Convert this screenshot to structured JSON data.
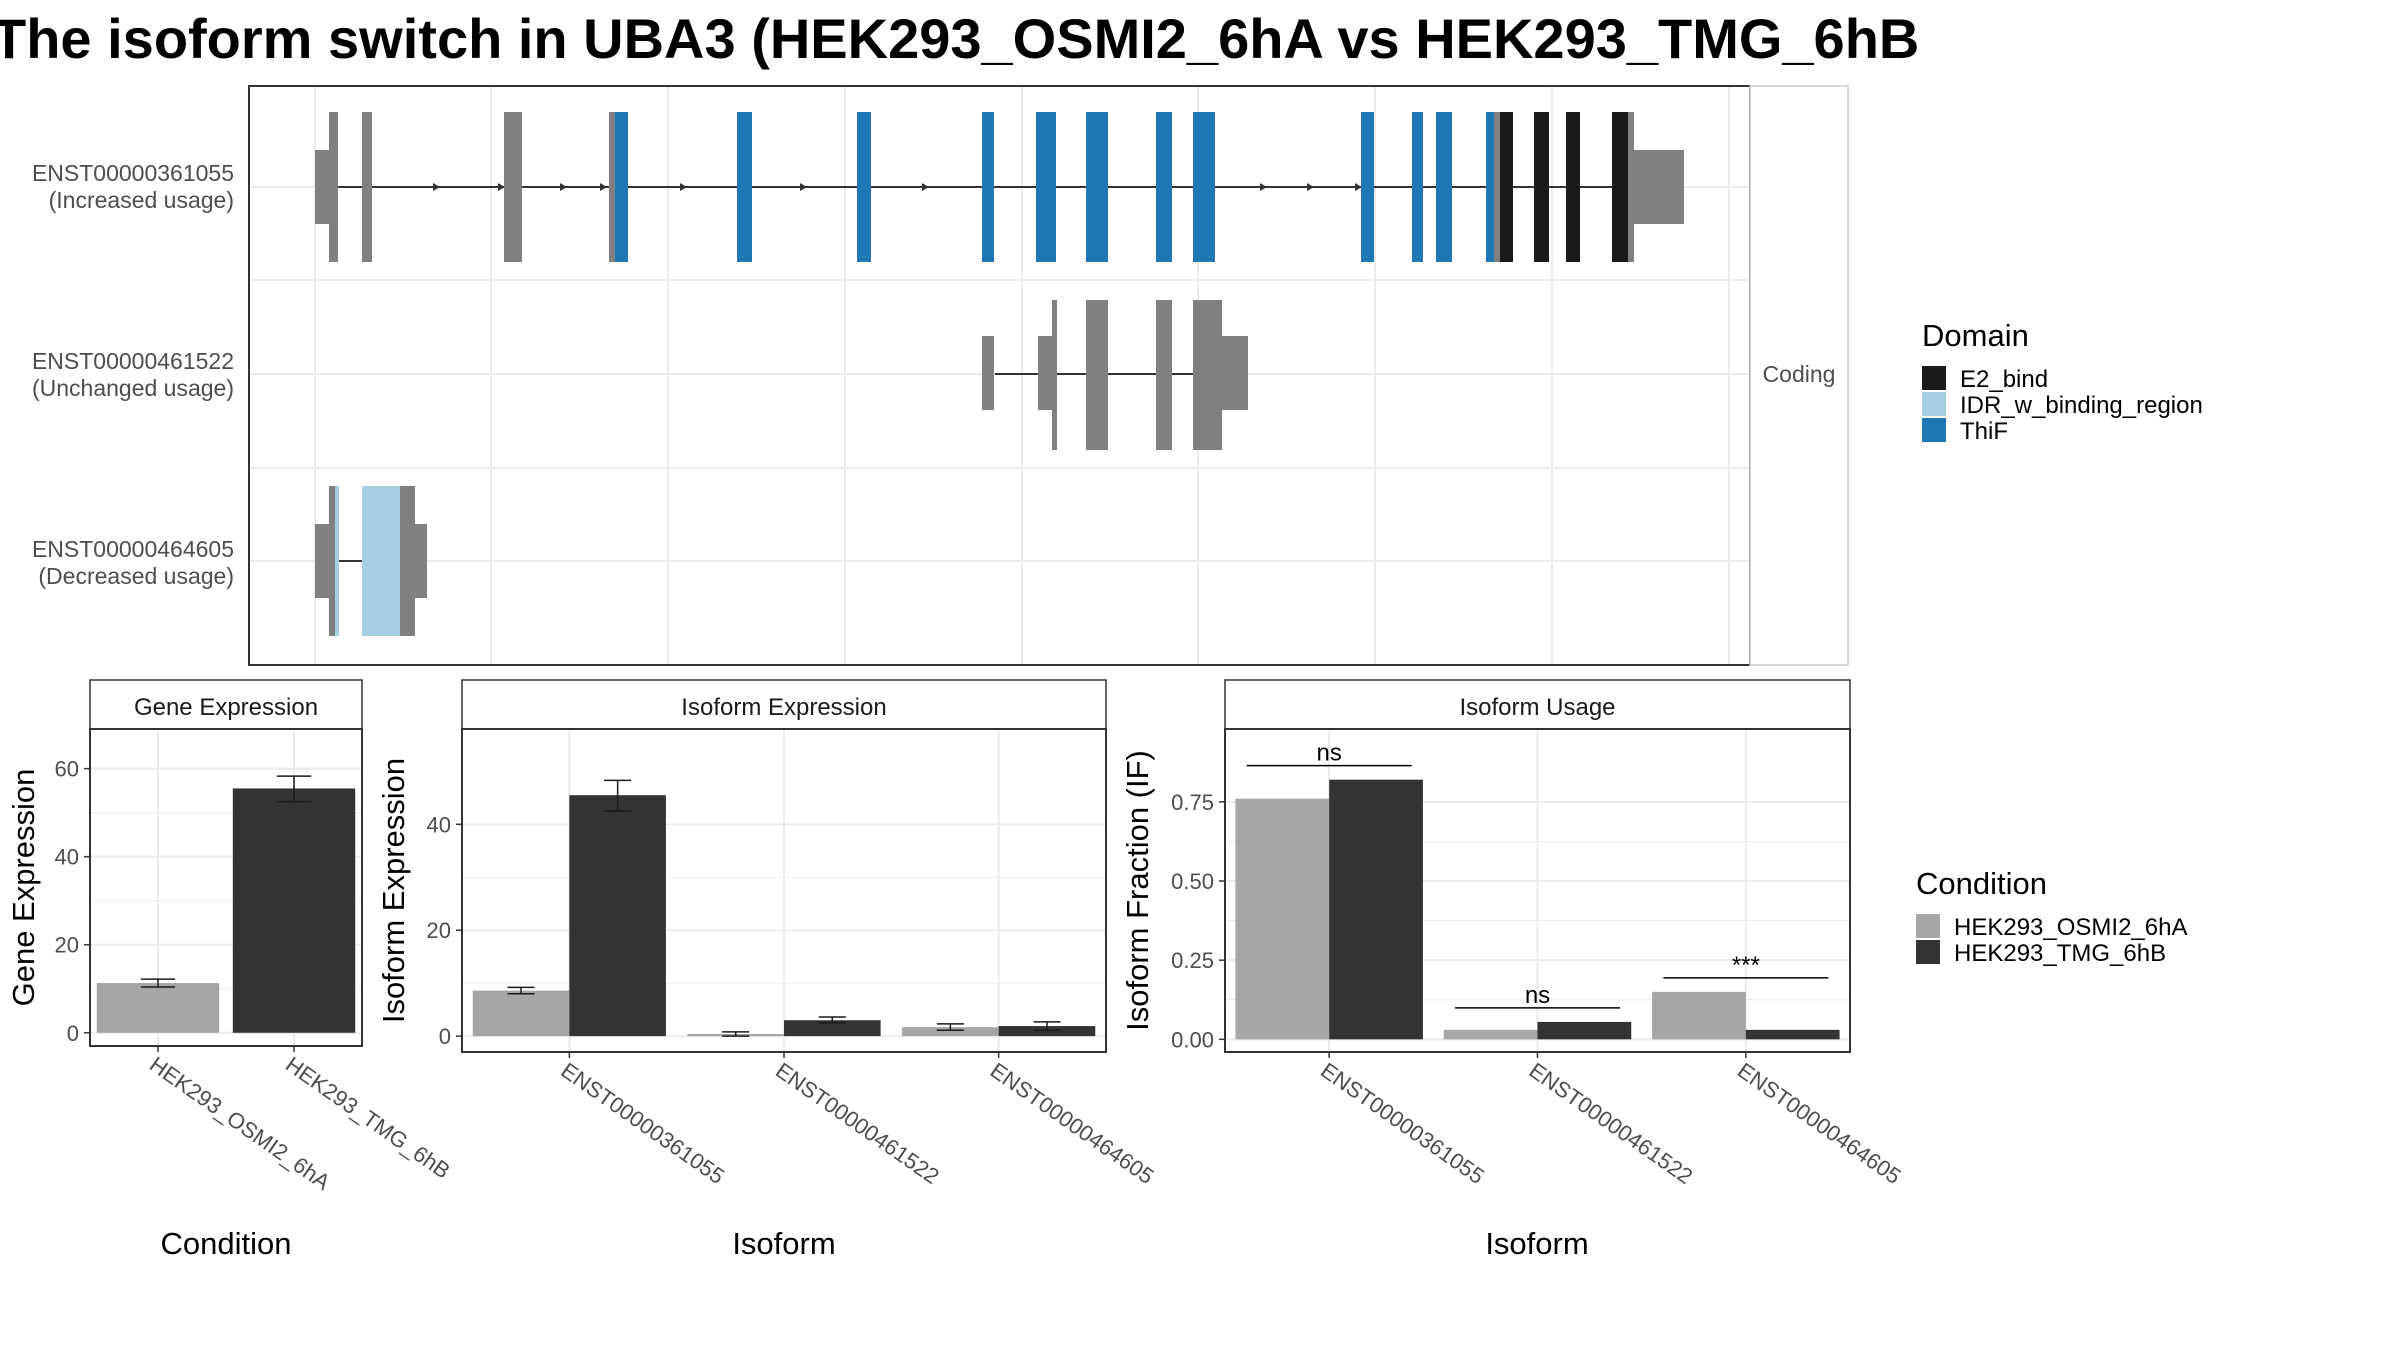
{
  "title": "The isoform switch in UBA3 (HEK293_OSMI2_6hA vs HEK293_TMG_6hB",
  "structure": {
    "facet_label": "Coding",
    "transcripts": [
      {
        "id": "ENST00000361055",
        "usage": "(Increased usage)"
      },
      {
        "id": "ENST00000461522",
        "usage": "(Unchanged usage)"
      },
      {
        "id": "ENST00000464605",
        "usage": "(Decreased usage)"
      }
    ]
  },
  "legend_domain": {
    "title": "Domain",
    "items": [
      {
        "label": "E2_bind",
        "color": "#1a1a1a"
      },
      {
        "label": "IDR_w_binding_region",
        "color": "#a6cee3"
      },
      {
        "label": "ThiF",
        "color": "#1f78b4"
      }
    ]
  },
  "legend_condition": {
    "title": "Condition",
    "items": [
      {
        "label": "HEK293_OSMI2_6hA",
        "color": "#a6a6a6"
      },
      {
        "label": "HEK293_TMG_6hB",
        "color": "#333333"
      }
    ]
  },
  "colors": {
    "utr": "#808080",
    "intron": "#333333",
    "grid": "#ebebeb",
    "panel_border": "#333333"
  },
  "chart_data": [
    {
      "type": "bar",
      "title": "Gene Expression",
      "xlabel": "Condition",
      "ylabel": "Gene Expression",
      "categories": [
        "HEK293_OSMI2_6hA",
        "HEK293_TMG_6hB"
      ],
      "values": [
        11.3,
        55.5
      ],
      "errors": [
        [
          10.4,
          12.2
        ],
        [
          52.5,
          58.3
        ]
      ],
      "ylim": [
        -3,
        69
      ],
      "yticks": [
        0,
        20,
        40,
        60
      ]
    },
    {
      "type": "bar",
      "title": "Isoform Expression",
      "xlabel": "Isoform",
      "ylabel": "Isoform Expression",
      "categories": [
        "ENST00000361055",
        "ENST00000461522",
        "ENST00000464605"
      ],
      "series": [
        {
          "name": "HEK293_OSMI2_6hA",
          "values": [
            8.6,
            0.4,
            1.7
          ],
          "errors": [
            [
              8.0,
              9.2
            ],
            [
              0.0,
              0.8
            ],
            [
              1.1,
              2.3
            ]
          ]
        },
        {
          "name": "HEK293_TMG_6hB",
          "values": [
            45.5,
            3.0,
            1.9
          ],
          "errors": [
            [
              42.5,
              48.3
            ],
            [
              2.5,
              3.6
            ],
            [
              1.1,
              2.7
            ]
          ]
        }
      ],
      "ylim": [
        -3,
        58
      ],
      "yticks": [
        0,
        20,
        40
      ]
    },
    {
      "type": "bar",
      "title": "Isoform Usage",
      "xlabel": "Isoform",
      "ylabel": "Isoform Fraction (IF)",
      "categories": [
        "ENST00000361055",
        "ENST00000461522",
        "ENST00000464605"
      ],
      "series": [
        {
          "name": "HEK293_OSMI2_6hA",
          "values": [
            0.76,
            0.03,
            0.15
          ]
        },
        {
          "name": "HEK293_TMG_6hB",
          "values": [
            0.82,
            0.055,
            0.03
          ]
        }
      ],
      "significance": [
        "ns",
        "ns",
        "***"
      ],
      "ylim": [
        -0.04,
        0.98
      ],
      "yticks": [
        "0.00",
        "0.25",
        "0.50",
        "0.75"
      ]
    }
  ]
}
